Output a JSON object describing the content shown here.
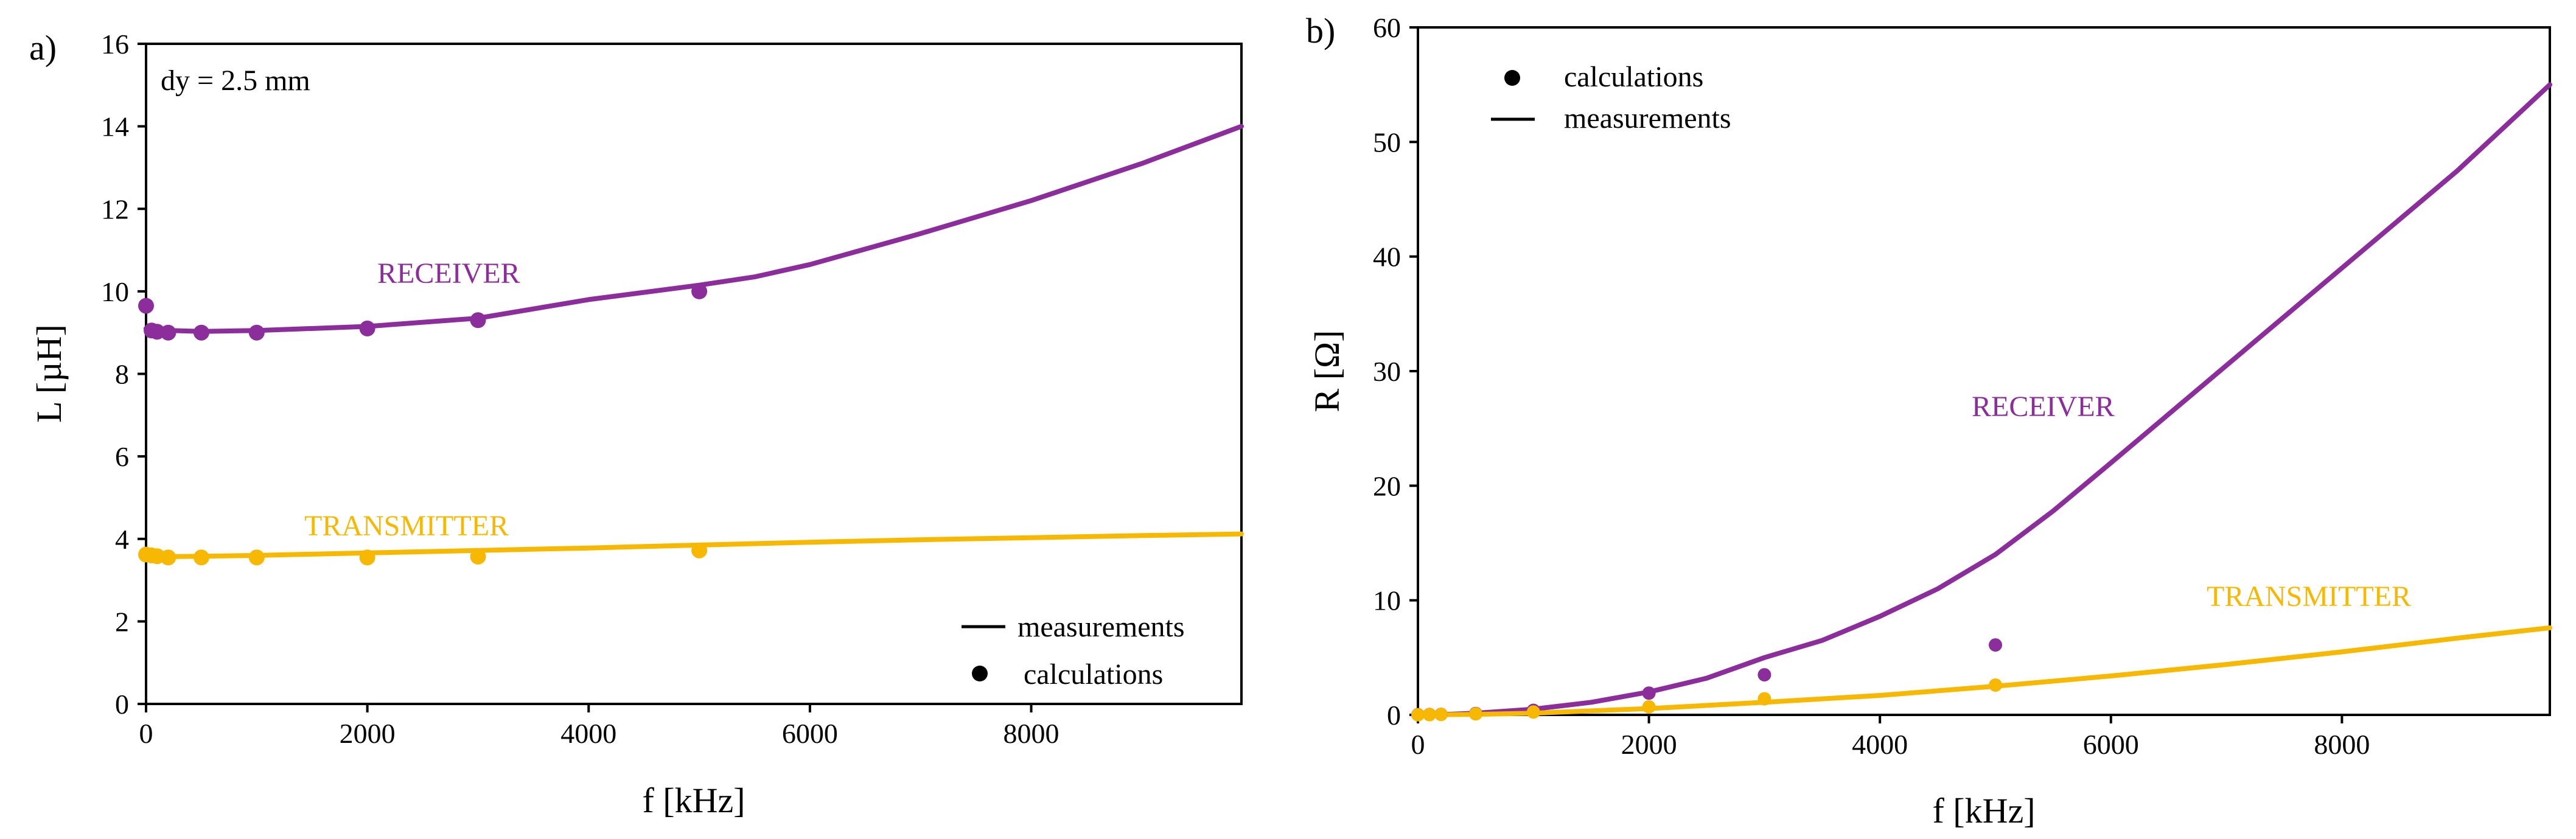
{
  "chart_data": [
    {
      "panel": "a)",
      "type": "line",
      "xlabel": "f [kHz]",
      "ylabel": "L [µH]",
      "xlim": [
        0,
        9900
      ],
      "ylim": [
        0,
        16
      ],
      "xticks": [
        0,
        2000,
        4000,
        6000,
        8000
      ],
      "yticks": [
        0,
        2,
        4,
        6,
        8,
        10,
        12,
        14,
        16
      ],
      "annotation": "dy = 2.5 mm",
      "legend": [
        {
          "label": "measurements",
          "marker": "line"
        },
        {
          "label": "calculations",
          "marker": "dot"
        }
      ],
      "series": [
        {
          "name": "RECEIVER",
          "color": "#8B2D9A",
          "measurements": {
            "x": [
              0,
              100,
              500,
              1000,
              2000,
              3000,
              4000,
              5000,
              5500,
              6000,
              7000,
              8000,
              9000,
              9900
            ],
            "y": [
              9.1,
              9.06,
              9.03,
              9.05,
              9.15,
              9.35,
              9.8,
              10.15,
              10.35,
              10.65,
              11.4,
              12.2,
              13.1,
              14.0
            ]
          },
          "calculations": {
            "x": [
              0,
              50,
              100,
              200,
              500,
              1000,
              2000,
              3000,
              5000
            ],
            "y": [
              9.65,
              9.05,
              9.02,
              9.0,
              9.0,
              9.0,
              9.1,
              9.3,
              10.0
            ]
          }
        },
        {
          "name": "TRANSMITTER",
          "color": "#F6B800",
          "measurements": {
            "x": [
              0,
              200,
              500,
              1000,
              2000,
              3000,
              4000,
              5000,
              6000,
              7000,
              8000,
              9000,
              9900
            ],
            "y": [
              3.6,
              3.57,
              3.58,
              3.6,
              3.66,
              3.72,
              3.78,
              3.85,
              3.92,
              3.98,
              4.03,
              4.08,
              4.12
            ]
          },
          "calculations": {
            "x": [
              0,
              50,
              100,
              200,
              500,
              1000,
              2000,
              3000,
              5000
            ],
            "y": [
              3.62,
              3.6,
              3.58,
              3.55,
              3.55,
              3.55,
              3.55,
              3.57,
              3.72
            ]
          }
        }
      ]
    },
    {
      "panel": "b)",
      "type": "line",
      "xlabel": "f [kHz]",
      "ylabel": "R [Ω]",
      "xlim": [
        0,
        9800
      ],
      "ylim": [
        0,
        60
      ],
      "xticks": [
        0,
        2000,
        4000,
        6000,
        8000
      ],
      "yticks": [
        0,
        10,
        20,
        30,
        40,
        50,
        60
      ],
      "legend": [
        {
          "label": "calculations",
          "marker": "dot"
        },
        {
          "label": "measurements",
          "marker": "line"
        }
      ],
      "series": [
        {
          "name": "RECEIVER",
          "color": "#8B2D9A",
          "measurements": {
            "x": [
              0,
              250,
              500,
              1000,
              1500,
              2000,
              2500,
              3000,
              3500,
              4000,
              4500,
              5000,
              5500,
              6000,
              7000,
              8000,
              9000,
              9800
            ],
            "y": [
              0,
              0.05,
              0.15,
              0.5,
              1.1,
              2.0,
              3.2,
              5.0,
              6.5,
              8.6,
              11.0,
              14.0,
              17.8,
              22.0,
              30.5,
              39.0,
              47.5,
              55.0
            ]
          },
          "calculations": {
            "x": [
              0,
              100,
              200,
              500,
              1000,
              2000,
              3000,
              5000
            ],
            "y": [
              0.02,
              0.03,
              0.05,
              0.12,
              0.4,
              1.9,
              3.5,
              6.1
            ]
          }
        },
        {
          "name": "TRANSMITTER",
          "color": "#F6B800",
          "measurements": {
            "x": [
              0,
              500,
              1000,
              2000,
              3000,
              4000,
              5000,
              6000,
              7000,
              8000,
              9000,
              9800
            ],
            "y": [
              0,
              0.05,
              0.15,
              0.55,
              1.1,
              1.7,
              2.5,
              3.4,
              4.4,
              5.5,
              6.7,
              7.6
            ]
          },
          "calculations": {
            "x": [
              0,
              100,
              200,
              500,
              1000,
              2000,
              3000,
              5000
            ],
            "y": [
              0.01,
              0.02,
              0.04,
              0.09,
              0.25,
              0.7,
              1.4,
              2.6
            ]
          }
        }
      ]
    }
  ]
}
